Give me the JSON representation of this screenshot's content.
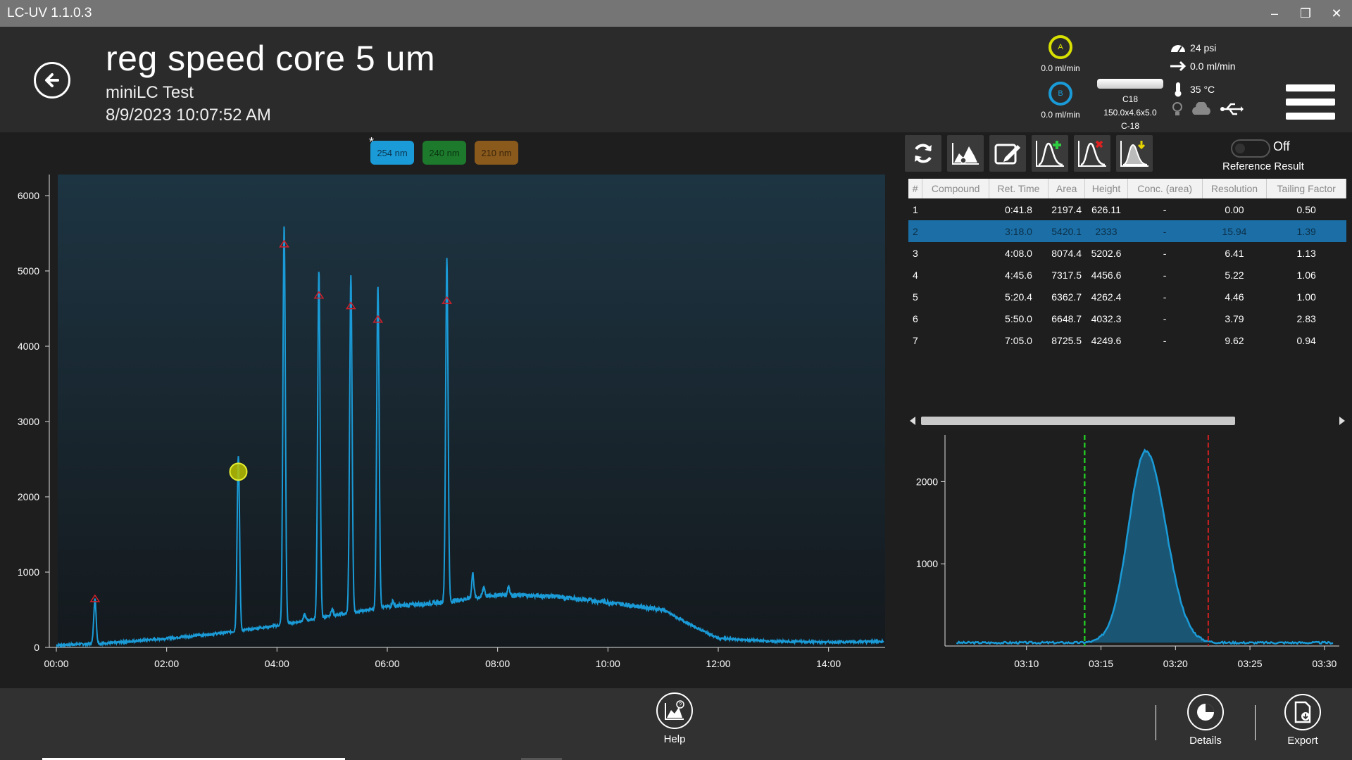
{
  "app": {
    "title": "LC-UV 1.1.0.3"
  },
  "window": {
    "minimize": "–",
    "restore": "❐",
    "close": "✕"
  },
  "header": {
    "title": "reg speed core 5 um",
    "subtitle": "miniLC Test",
    "datetime": "8/9/2023 10:07:52 AM"
  },
  "pumps": [
    {
      "letter": "A",
      "flow": "0.0 ml/min",
      "color": "#d7e000"
    },
    {
      "letter": "B",
      "flow": "0.0 ml/min",
      "color": "#1a9bd7"
    }
  ],
  "column": {
    "name": "C18",
    "dims": "150.0x4.6x5.0",
    "phase": "C-18"
  },
  "status": {
    "pressure": "24 psi",
    "flow": "0.0 ml/min",
    "temperature": "35 °C"
  },
  "wavelengths": [
    {
      "label": "254 nm",
      "bg": "#1a9bd7",
      "fg": "#0b3550"
    },
    {
      "label": "240 nm",
      "bg": "#1d7a2c",
      "fg": "#0a3512"
    },
    {
      "label": "210 nm",
      "bg": "#8a5a1d",
      "fg": "#3a240a"
    }
  ],
  "wavelength_marker": "*",
  "reference": {
    "toggle_state": "Off",
    "label": "Reference Result"
  },
  "table": {
    "headers": [
      "#",
      "Compound",
      "Ret. Time",
      "Area",
      "Height",
      "Conc. (area)",
      "Resolution",
      "Tailing Factor"
    ],
    "rows": [
      [
        "1",
        "",
        "0:41.8",
        "2197.4",
        "626.11",
        "-",
        "0.00",
        "0.50"
      ],
      [
        "2",
        "",
        "3:18.0",
        "5420.1",
        "2333",
        "-",
        "15.94",
        "1.39"
      ],
      [
        "3",
        "",
        "4:08.0",
        "8074.4",
        "5202.6",
        "-",
        "6.41",
        "1.13"
      ],
      [
        "4",
        "",
        "4:45.6",
        "7317.5",
        "4456.6",
        "-",
        "5.22",
        "1.06"
      ],
      [
        "5",
        "",
        "5:20.4",
        "6362.7",
        "4262.4",
        "-",
        "4.46",
        "1.00"
      ],
      [
        "6",
        "",
        "5:50.0",
        "6648.7",
        "4032.3",
        "-",
        "3.79",
        "2.83"
      ],
      [
        "7",
        "",
        "7:05.0",
        "8725.5",
        "4249.6",
        "-",
        "9.62",
        "0.94"
      ]
    ],
    "selected_row": 1
  },
  "footer": {
    "help": "Help",
    "details": "Details",
    "export": "Export"
  },
  "chart_data": [
    {
      "type": "line",
      "name": "chromatogram",
      "xlabel": "",
      "ylabel": "",
      "x_ticks": [
        "00:00",
        "02:00",
        "04:00",
        "06:00",
        "08:00",
        "10:00",
        "12:00",
        "14:00"
      ],
      "y_ticks": [
        "0",
        "1000",
        "2000",
        "3000",
        "4000",
        "5000",
        "6000"
      ],
      "xlim_min": [
        0,
        15
      ],
      "ylim": [
        0,
        6300
      ],
      "peaks_min": [
        {
          "t": 0.7,
          "h": 590,
          "marker": "triangle"
        },
        {
          "t": 3.3,
          "h": 2333,
          "marker": "circle-selected"
        },
        {
          "t": 4.13,
          "h": 5300,
          "marker": "triangle"
        },
        {
          "t": 4.76,
          "h": 4620,
          "marker": "triangle"
        },
        {
          "t": 5.34,
          "h": 4480,
          "marker": "triangle"
        },
        {
          "t": 5.83,
          "h": 4300,
          "marker": "triangle"
        },
        {
          "t": 7.08,
          "h": 4550,
          "marker": "triangle"
        }
      ],
      "baseline": [
        [
          0,
          30
        ],
        [
          1,
          60
        ],
        [
          2,
          120
        ],
        [
          3,
          190
        ],
        [
          4,
          290
        ],
        [
          5,
          420
        ],
        [
          6,
          540
        ],
        [
          7,
          600
        ],
        [
          8,
          700
        ],
        [
          9,
          680
        ],
        [
          10,
          600
        ],
        [
          11,
          500
        ],
        [
          11.5,
          300
        ],
        [
          12,
          120
        ],
        [
          13,
          80
        ],
        [
          14,
          70
        ],
        [
          15,
          80
        ]
      ],
      "color": "#1a9bd7"
    },
    {
      "type": "area",
      "name": "selected peak detail",
      "x_ticks": [
        "03:10",
        "03:15",
        "03:20",
        "03:25",
        "03:30"
      ],
      "y_ticks": [
        "1000",
        "2000"
      ],
      "xlim_sec": [
        185,
        211
      ],
      "ylim": [
        0,
        2200
      ],
      "peak": {
        "center_sec": 198.0,
        "height": 2333,
        "sigma_left": 1.15,
        "sigma_right": 1.35
      },
      "start_marker_sec": 193.9,
      "end_marker_sec": 202.2,
      "start_color": "#22c422",
      "end_color": "#d02020",
      "color": "#1a9bd7"
    }
  ]
}
